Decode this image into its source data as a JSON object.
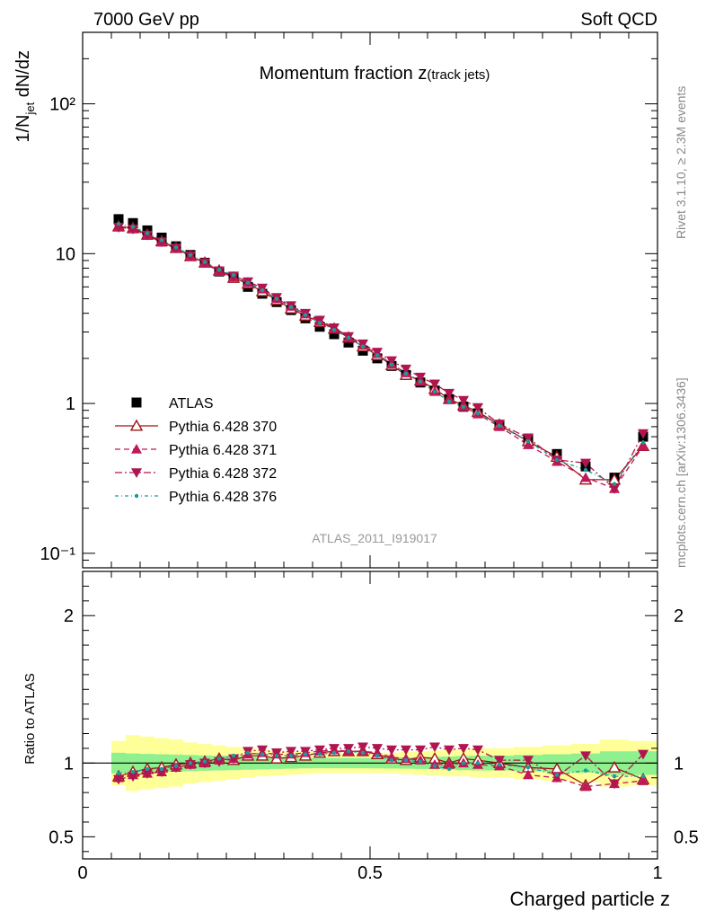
{
  "header": {
    "left": "7000 GeV pp",
    "right": "Soft QCD",
    "side_top": "Rivet 3.1.10, ≥ 2.3M events",
    "side_bottom": "mcplots.cern.ch [arXiv:1306.3436]"
  },
  "chart_data": [
    {
      "type": "scatter",
      "title_main": "Momentum fraction ",
      "title_var": "z",
      "title_sub": "(track jets)",
      "watermark": "ATLAS_2011_I919017",
      "ylabel_pre": "1/N",
      "ylabel_sub": "jet",
      "ylabel_post": " dN/dz",
      "yscale": "log",
      "xlim": [
        0,
        1
      ],
      "ylim": [
        0.08,
        300
      ],
      "yticks": [
        {
          "v": 0.1,
          "label": "10⁻¹"
        },
        {
          "v": 1,
          "label": "1"
        },
        {
          "v": 10,
          "label": "10"
        },
        {
          "v": 100,
          "label": "10²"
        }
      ],
      "x": [
        0.0625,
        0.0875,
        0.1125,
        0.1375,
        0.1625,
        0.1875,
        0.2125,
        0.2375,
        0.2625,
        0.2875,
        0.3125,
        0.3375,
        0.3625,
        0.3875,
        0.4125,
        0.4375,
        0.4625,
        0.4875,
        0.5125,
        0.5375,
        0.5625,
        0.5875,
        0.6125,
        0.6375,
        0.6625,
        0.6875,
        0.725,
        0.775,
        0.825,
        0.875,
        0.925,
        0.975
      ],
      "series": [
        {
          "name": "ATLAS",
          "color": "#000000",
          "marker": "square",
          "line": "none",
          "values": [
            17.0,
            16.0,
            14.3,
            12.8,
            11.2,
            9.8,
            8.7,
            7.6,
            6.9,
            6.0,
            5.4,
            4.75,
            4.2,
            3.7,
            3.25,
            2.9,
            2.55,
            2.25,
            2.0,
            1.78,
            1.55,
            1.38,
            1.22,
            1.07,
            0.95,
            0.86,
            0.72,
            0.58,
            0.46,
            0.38,
            0.32,
            0.6
          ]
        },
        {
          "name": "Pythia 6.428 370",
          "color": "#a01515",
          "marker": "triangle-open",
          "line": "solid",
          "values": [
            15.2,
            14.8,
            13.4,
            12.1,
            10.9,
            9.6,
            8.7,
            7.7,
            6.9,
            6.3,
            5.6,
            4.9,
            4.3,
            3.85,
            3.5,
            3.15,
            2.75,
            2.4,
            2.1,
            1.8,
            1.55,
            1.42,
            1.25,
            1.07,
            0.97,
            0.88,
            0.72,
            0.56,
            0.44,
            0.31,
            0.31,
            0.52
          ]
        },
        {
          "name": "Pythia 6.428 371",
          "color": "#c0185a",
          "marker": "triangle-up",
          "line": "dashed",
          "values": [
            15.0,
            14.6,
            13.2,
            11.9,
            10.8,
            9.6,
            8.6,
            7.6,
            7.0,
            6.4,
            5.8,
            5.0,
            4.45,
            3.95,
            3.55,
            3.15,
            2.75,
            2.45,
            2.15,
            1.83,
            1.6,
            1.4,
            1.2,
            1.06,
            0.95,
            0.85,
            0.7,
            0.53,
            0.41,
            0.32,
            0.27,
            0.52
          ]
        },
        {
          "name": "Pythia 6.428 372",
          "color": "#b01550",
          "marker": "triangle-down",
          "line": "dashdot",
          "values": [
            15.0,
            14.6,
            13.3,
            12.0,
            10.9,
            9.7,
            8.7,
            7.7,
            7.1,
            6.5,
            5.9,
            5.1,
            4.5,
            4.0,
            3.6,
            3.2,
            2.8,
            2.5,
            2.2,
            1.93,
            1.7,
            1.5,
            1.35,
            1.17,
            1.05,
            0.94,
            0.73,
            0.59,
            0.42,
            0.4,
            0.27,
            0.63
          ]
        },
        {
          "name": "Pythia 6.428 376",
          "color": "#1a9b9b",
          "marker": "dot",
          "line": "dashdot2",
          "values": [
            15.8,
            15.1,
            13.7,
            12.3,
            11.0,
            9.8,
            8.8,
            7.8,
            7.2,
            6.4,
            5.7,
            5.0,
            4.4,
            3.9,
            3.45,
            3.1,
            2.75,
            2.4,
            2.1,
            1.82,
            1.58,
            1.4,
            1.2,
            1.03,
            0.95,
            0.86,
            0.71,
            0.56,
            0.42,
            0.36,
            0.29,
            0.55
          ]
        }
      ]
    },
    {
      "type": "scatter",
      "ylabel": "Ratio to ATLAS",
      "xlabel": "Charged particle z",
      "xlim": [
        0,
        1
      ],
      "ylim": [
        0.35,
        2.3
      ],
      "xticks": [
        {
          "v": 0,
          "label": "0"
        },
        {
          "v": 0.5,
          "label": "0.5"
        },
        {
          "v": 1,
          "label": "1"
        }
      ],
      "yticks": [
        {
          "v": 0.5,
          "label": "0.5"
        },
        {
          "v": 1,
          "label": "1"
        },
        {
          "v": 2,
          "label": "2"
        }
      ],
      "bands": {
        "x_edges": [
          0.05,
          0.075,
          0.1,
          0.125,
          0.15,
          0.175,
          0.2,
          0.225,
          0.25,
          0.275,
          0.3,
          0.325,
          0.35,
          0.375,
          0.4,
          0.425,
          0.45,
          0.475,
          0.5,
          0.525,
          0.55,
          0.575,
          0.6,
          0.625,
          0.65,
          0.675,
          0.7,
          0.75,
          0.8,
          0.85,
          0.9,
          0.95,
          1.0
        ],
        "stat_color": "#8ef08e",
        "total_color": "#ffff99",
        "stat_halfwidth": [
          0.07,
          0.065,
          0.062,
          0.06,
          0.058,
          0.055,
          0.052,
          0.05,
          0.048,
          0.045,
          0.043,
          0.04,
          0.038,
          0.036,
          0.035,
          0.035,
          0.035,
          0.035,
          0.036,
          0.037,
          0.038,
          0.04,
          0.042,
          0.045,
          0.048,
          0.05,
          0.05,
          0.055,
          0.06,
          0.065,
          0.08,
          0.08
        ],
        "total_halfwidth": [
          0.15,
          0.19,
          0.18,
          0.17,
          0.16,
          0.14,
          0.13,
          0.12,
          0.11,
          0.1,
          0.09,
          0.085,
          0.08,
          0.075,
          0.07,
          0.07,
          0.07,
          0.07,
          0.07,
          0.07,
          0.075,
          0.08,
          0.085,
          0.09,
          0.09,
          0.1,
          0.1,
          0.11,
          0.12,
          0.13,
          0.16,
          0.15
        ]
      },
      "series": [
        {
          "name": "Pythia 6.428 370",
          "values": [
            0.91,
            0.94,
            0.96,
            0.97,
            0.99,
            1.0,
            1.01,
            1.03,
            1.02,
            1.05,
            1.05,
            1.03,
            1.04,
            1.05,
            1.07,
            1.08,
            1.08,
            1.08,
            1.06,
            1.03,
            1.02,
            1.04,
            1.03,
            1.0,
            1.03,
            1.02,
            1.0,
            0.97,
            0.96,
            0.85,
            0.97,
            0.89
          ]
        },
        {
          "name": "Pythia 6.428 371",
          "values": [
            0.9,
            0.92,
            0.93,
            0.94,
            0.97,
            0.99,
            1.0,
            1.02,
            1.03,
            1.06,
            1.07,
            1.06,
            1.06,
            1.07,
            1.08,
            1.09,
            1.08,
            1.08,
            1.07,
            1.04,
            1.03,
            1.02,
            0.99,
            0.99,
            1.0,
            0.99,
            0.98,
            0.92,
            0.9,
            0.84,
            0.86,
            0.88
          ]
        },
        {
          "name": "Pythia 6.428 372",
          "values": [
            0.89,
            0.91,
            0.93,
            0.94,
            0.97,
            0.99,
            1.0,
            1.01,
            1.03,
            1.08,
            1.09,
            1.07,
            1.08,
            1.08,
            1.09,
            1.1,
            1.1,
            1.11,
            1.1,
            1.09,
            1.09,
            1.09,
            1.11,
            1.09,
            1.1,
            1.09,
            1.02,
            1.02,
            0.91,
            1.05,
            0.86,
            1.06
          ]
        },
        {
          "name": "Pythia 6.428 376",
          "values": [
            0.93,
            0.94,
            0.96,
            0.96,
            0.98,
            1.0,
            1.01,
            1.03,
            1.05,
            1.07,
            1.06,
            1.05,
            1.05,
            1.06,
            1.06,
            1.07,
            1.08,
            1.07,
            1.05,
            1.02,
            1.02,
            1.01,
            0.98,
            0.96,
            1.0,
            1.0,
            0.99,
            0.97,
            0.92,
            0.95,
            0.91,
            0.91
          ]
        }
      ]
    }
  ]
}
